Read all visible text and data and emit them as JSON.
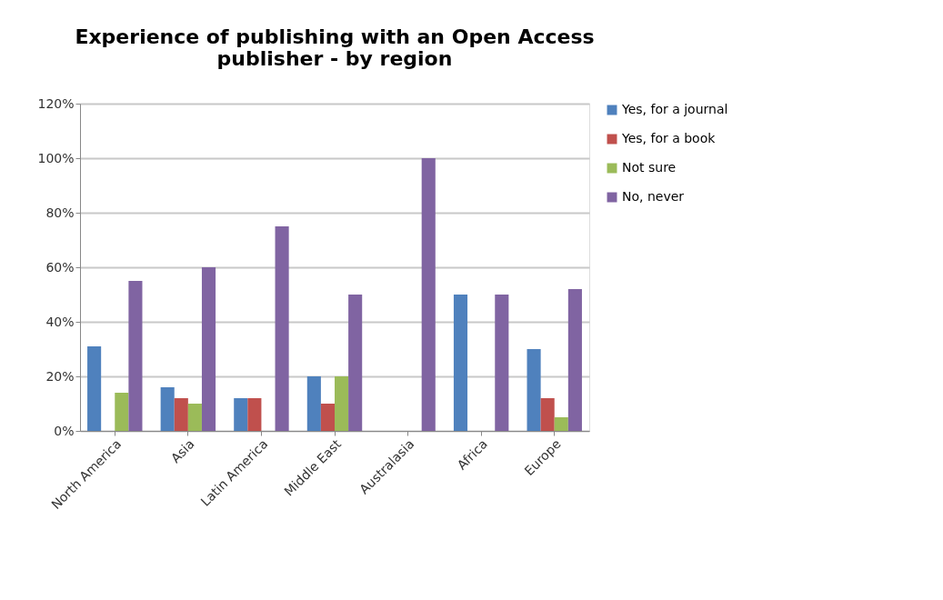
{
  "chart_data": {
    "type": "bar",
    "title": "Experience of publishing with an Open Access\npublisher - by region",
    "categories": [
      "North America",
      "Asia",
      "Latin America",
      "Middle East",
      "Australasia",
      "Africa",
      "Europe"
    ],
    "series": [
      {
        "name": "Yes, for a journal",
        "color": "#4f81bd",
        "values": [
          31,
          16,
          12,
          20,
          0,
          50,
          30
        ]
      },
      {
        "name": "Yes, for a book",
        "color": "#c0504d",
        "values": [
          0,
          12,
          12,
          10,
          0,
          0,
          12
        ]
      },
      {
        "name": "Not sure",
        "color": "#9bbb59",
        "values": [
          14,
          10,
          0,
          20,
          0,
          0,
          5
        ]
      },
      {
        "name": "No, never",
        "color": "#8064a2",
        "values": [
          55,
          60,
          75,
          50,
          100,
          50,
          52
        ]
      }
    ],
    "ylim": [
      0,
      120
    ],
    "yticks": [
      {
        "value": 0,
        "label": "0%"
      },
      {
        "value": 20,
        "label": "20%"
      },
      {
        "value": 40,
        "label": "40%"
      },
      {
        "value": 60,
        "label": "60%"
      },
      {
        "value": 80,
        "label": "80%"
      },
      {
        "value": 100,
        "label": "100%"
      },
      {
        "value": 120,
        "label": "120%"
      }
    ],
    "grid": "y",
    "legend": "right"
  }
}
